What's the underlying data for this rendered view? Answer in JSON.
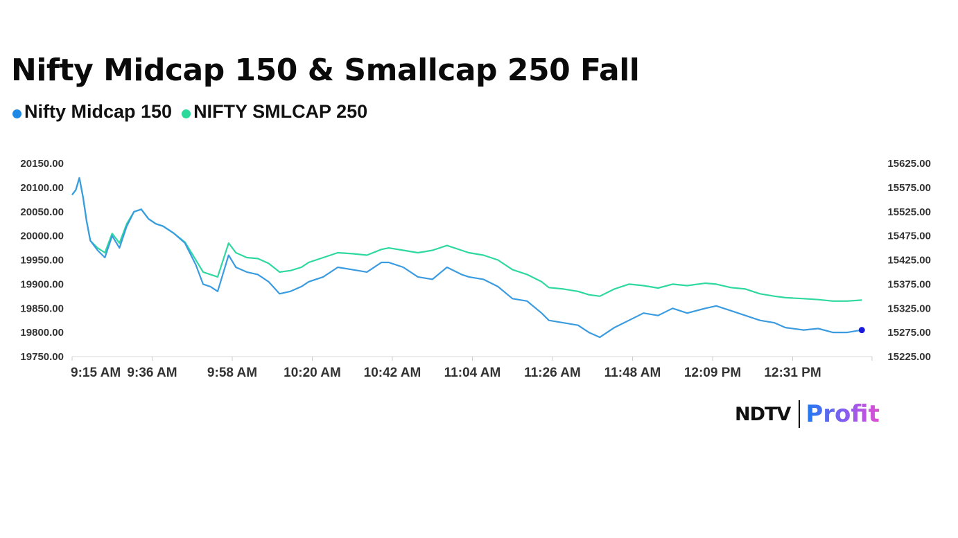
{
  "title": "Nifty Midcap 150 & Smallcap 250 Fall",
  "legend": [
    {
      "label": "Nifty Midcap 150",
      "color": "#1e88e5"
    },
    {
      "label": "NIFTY SMLCAP 250",
      "color": "#2bd99a"
    }
  ],
  "brand": {
    "left": "NDTV",
    "right": "Profit"
  },
  "chart_data": {
    "type": "line",
    "title": "Nifty Midcap 150 & Smallcap 250 Fall",
    "x_tick_labels": [
      "9:15 AM",
      "9:36 AM",
      "9:58 AM",
      "10:20 AM",
      "10:42 AM",
      "11:04 AM",
      "11:26 AM",
      "11:48 AM",
      "12:09 PM",
      "12:31 PM"
    ],
    "y_left": {
      "ylim": [
        19750,
        20150
      ],
      "tick_labels": [
        "20150.00",
        "20100.00",
        "20050.00",
        "20000.00",
        "19950.00",
        "19900.00",
        "19850.00",
        "19800.00",
        "19750.00"
      ]
    },
    "y_right": {
      "ylim": [
        15225,
        15625
      ],
      "tick_labels": [
        "15625.00",
        "15575.00",
        "15525.00",
        "15475.00",
        "15425.00",
        "15375.00",
        "15325.00",
        "15275.00",
        "15225.00"
      ]
    },
    "grid": false,
    "series": [
      {
        "name": "Nifty Midcap 150",
        "axis": "left",
        "color": "#3a9be0",
        "x": [
          "9:15 AM",
          "9:16 AM",
          "9:17 AM",
          "9:18 AM",
          "9:19 AM",
          "9:20 AM",
          "9:22 AM",
          "9:24 AM",
          "9:26 AM",
          "9:28 AM",
          "9:30 AM",
          "9:32 AM",
          "9:34 AM",
          "9:36 AM",
          "9:38 AM",
          "9:40 AM",
          "9:43 AM",
          "9:46 AM",
          "9:49 AM",
          "9:51 AM",
          "9:53 AM",
          "9:55 AM",
          "9:58 AM",
          "10:00 AM",
          "10:03 AM",
          "10:06 AM",
          "10:09 AM",
          "10:12 AM",
          "10:15 AM",
          "10:18 AM",
          "10:20 AM",
          "10:24 AM",
          "10:28 AM",
          "10:32 AM",
          "10:36 AM",
          "10:40 AM",
          "10:42 AM",
          "10:46 AM",
          "10:50 AM",
          "10:54 AM",
          "10:58 AM",
          "11:02 AM",
          "11:04 AM",
          "11:08 AM",
          "11:12 AM",
          "11:16 AM",
          "11:20 AM",
          "11:24 AM",
          "11:26 AM",
          "11:30 AM",
          "11:34 AM",
          "11:37 AM",
          "11:40 AM",
          "11:44 AM",
          "11:48 AM",
          "11:52 AM",
          "11:56 AM",
          "12:00 PM",
          "12:04 PM",
          "12:09 PM",
          "12:12 PM",
          "12:16 PM",
          "12:20 PM",
          "12:24 PM",
          "12:28 PM",
          "12:31 PM",
          "12:36 PM",
          "12:40 PM",
          "12:44 PM",
          "12:48 PM",
          "12:52 PM"
        ],
        "y": [
          20085,
          20095,
          20120,
          20080,
          20030,
          19990,
          19970,
          19955,
          20000,
          19975,
          20020,
          20050,
          20055,
          20035,
          20025,
          20020,
          20005,
          19985,
          19940,
          19900,
          19895,
          19885,
          19960,
          19935,
          19925,
          19920,
          19905,
          19880,
          19885,
          19895,
          19905,
          19915,
          19935,
          19930,
          19925,
          19945,
          19945,
          19935,
          19915,
          19910,
          19935,
          19920,
          19915,
          19910,
          19895,
          19870,
          19865,
          19840,
          19825,
          19820,
          19815,
          19800,
          19790,
          19810,
          19825,
          19840,
          19835,
          19850,
          19840,
          19850,
          19855,
          19845,
          19835,
          19825,
          19820,
          19810,
          19805,
          19808,
          19800,
          19800,
          19805
        ]
      },
      {
        "name": "NIFTY SMLCAP 250",
        "axis": "right",
        "color": "#2ed8a0",
        "x": [
          "9:15 AM",
          "9:16 AM",
          "9:17 AM",
          "9:18 AM",
          "9:19 AM",
          "9:20 AM",
          "9:22 AM",
          "9:24 AM",
          "9:26 AM",
          "9:28 AM",
          "9:30 AM",
          "9:32 AM",
          "9:34 AM",
          "9:36 AM",
          "9:38 AM",
          "9:40 AM",
          "9:43 AM",
          "9:46 AM",
          "9:49 AM",
          "9:51 AM",
          "9:53 AM",
          "9:55 AM",
          "9:58 AM",
          "10:00 AM",
          "10:03 AM",
          "10:06 AM",
          "10:09 AM",
          "10:12 AM",
          "10:15 AM",
          "10:18 AM",
          "10:20 AM",
          "10:24 AM",
          "10:28 AM",
          "10:32 AM",
          "10:36 AM",
          "10:40 AM",
          "10:42 AM",
          "10:46 AM",
          "10:50 AM",
          "10:54 AM",
          "10:58 AM",
          "11:02 AM",
          "11:04 AM",
          "11:08 AM",
          "11:12 AM",
          "11:16 AM",
          "11:20 AM",
          "11:24 AM",
          "11:26 AM",
          "11:30 AM",
          "11:34 AM",
          "11:37 AM",
          "11:40 AM",
          "11:44 AM",
          "11:48 AM",
          "11:52 AM",
          "11:56 AM",
          "12:00 PM",
          "12:04 PM",
          "12:09 PM",
          "12:12 PM",
          "12:16 PM",
          "12:20 PM",
          "12:24 PM",
          "12:28 PM",
          "12:31 PM",
          "12:36 PM",
          "12:40 PM",
          "12:44 PM",
          "12:48 PM",
          "12:52 PM"
        ],
        "y": [
          15560,
          15570,
          15595,
          15555,
          15505,
          15465,
          15450,
          15440,
          15480,
          15460,
          15500,
          15525,
          15530,
          15510,
          15500,
          15495,
          15480,
          15462,
          15425,
          15400,
          15395,
          15390,
          15460,
          15440,
          15430,
          15428,
          15418,
          15400,
          15403,
          15410,
          15420,
          15430,
          15440,
          15438,
          15435,
          15447,
          15450,
          15445,
          15440,
          15445,
          15455,
          15445,
          15440,
          15435,
          15425,
          15405,
          15395,
          15380,
          15368,
          15365,
          15360,
          15353,
          15350,
          15365,
          15375,
          15372,
          15367,
          15375,
          15372,
          15377,
          15375,
          15368,
          15365,
          15355,
          15350,
          15347,
          15345,
          15343,
          15340,
          15340,
          15342
        ]
      }
    ]
  }
}
